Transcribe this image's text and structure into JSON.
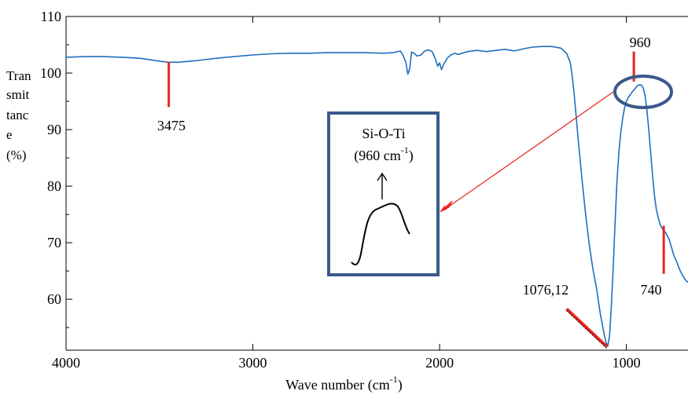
{
  "chart_data": {
    "type": "line",
    "title": "",
    "xlabel": {
      "text": "Wave number (cm",
      "sup": "-1",
      "tail": ")"
    },
    "ylabel": [
      "Tran",
      "smit",
      "tanc",
      "e",
      "(%)"
    ],
    "xlim": [
      4000,
      670
    ],
    "ylim": [
      51,
      110
    ],
    "x_reversed": true,
    "x_ticks": [
      4000,
      3000,
      2000,
      1000
    ],
    "y_ticks": [
      60,
      70,
      80,
      90,
      100,
      110
    ],
    "grid": false,
    "series": [
      {
        "color": "#1f6fbf",
        "x": [
          4000,
          3900,
          3800,
          3700,
          3600,
          3500,
          3450,
          3400,
          3300,
          3200,
          3100,
          3000,
          2900,
          2800,
          2700,
          2600,
          2500,
          2400,
          2300,
          2250,
          2210,
          2195,
          2180,
          2170,
          2160,
          2150,
          2140,
          2120,
          2100,
          2080,
          2060,
          2040,
          2020,
          2010,
          2000,
          1990,
          1980,
          1960,
          1940,
          1920,
          1900,
          1850,
          1800,
          1750,
          1700,
          1650,
          1600,
          1550,
          1500,
          1450,
          1400,
          1350,
          1320,
          1300,
          1290,
          1280,
          1260,
          1240,
          1220,
          1200,
          1180,
          1160,
          1140,
          1120,
          1110,
          1100,
          1090,
          1080,
          1070,
          1060,
          1050,
          1040,
          1030,
          1020,
          1010,
          1000,
          990,
          980,
          970,
          960,
          950,
          940,
          930,
          920,
          910,
          900,
          890,
          880,
          870,
          860,
          850,
          840,
          830,
          820,
          810,
          800,
          790,
          780,
          770,
          760,
          750,
          740,
          730,
          720,
          710,
          700,
          690,
          680,
          670
        ],
        "y": [
          102.8,
          102.9,
          102.9,
          102.8,
          102.6,
          102.1,
          101.9,
          101.9,
          102.2,
          102.6,
          102.9,
          103.2,
          103.4,
          103.5,
          103.5,
          103.6,
          103.6,
          103.6,
          103.5,
          103.6,
          103.9,
          103.1,
          101.8,
          99.8,
          100.8,
          103.7,
          103.6,
          103.0,
          103.2,
          103.9,
          104.1,
          103.8,
          102.3,
          101.2,
          101.8,
          100.6,
          101.4,
          102.6,
          103.2,
          103.5,
          103.3,
          103.8,
          104.0,
          103.8,
          104.0,
          104.2,
          103.9,
          104.3,
          104.6,
          104.7,
          104.7,
          104.4,
          103.5,
          101.8,
          99.5,
          96.5,
          89.0,
          82.0,
          75.5,
          70.0,
          65.5,
          62.0,
          57.5,
          54.0,
          52.5,
          51.7,
          53.5,
          59.0,
          66.0,
          74.0,
          81.0,
          86.0,
          89.5,
          92.0,
          93.8,
          95.0,
          95.7,
          96.1,
          96.6,
          97.0,
          97.4,
          97.8,
          97.9,
          97.9,
          97.4,
          96.0,
          93.5,
          90.0,
          86.0,
          82.0,
          78.5,
          76.0,
          74.5,
          73.3,
          72.6,
          72.2,
          71.8,
          71.2,
          70.5,
          69.4,
          68.2,
          67.3,
          66.6,
          65.7,
          64.9,
          64.3,
          63.7,
          63.3,
          63.0
        ]
      }
    ],
    "annotations": [
      {
        "text": "3475",
        "x": 3450,
        "marker_y": [
          94,
          102
        ],
        "color": "#e8231f"
      },
      {
        "text": "960",
        "x": 960,
        "marker_y": [
          98.5,
          103.8
        ],
        "color": "#e8231f"
      },
      {
        "text": "740",
        "x": 800,
        "marker_y": [
          64.5,
          73
        ],
        "color": "#e8231f"
      },
      {
        "text": "1076,12",
        "x": 1100,
        "marker_y": [
          51.6,
          58.3
        ],
        "color": "#e8231f"
      }
    ],
    "inset": {
      "line1": "Si-O-Ti",
      "line2_prefix": "(960 cm",
      "line2_sup": "-1",
      "line2_suffix": ")",
      "border_color": "#3b5a8a",
      "arrow_color": "#e8231f",
      "circle_color": "#3b5a8a"
    }
  }
}
